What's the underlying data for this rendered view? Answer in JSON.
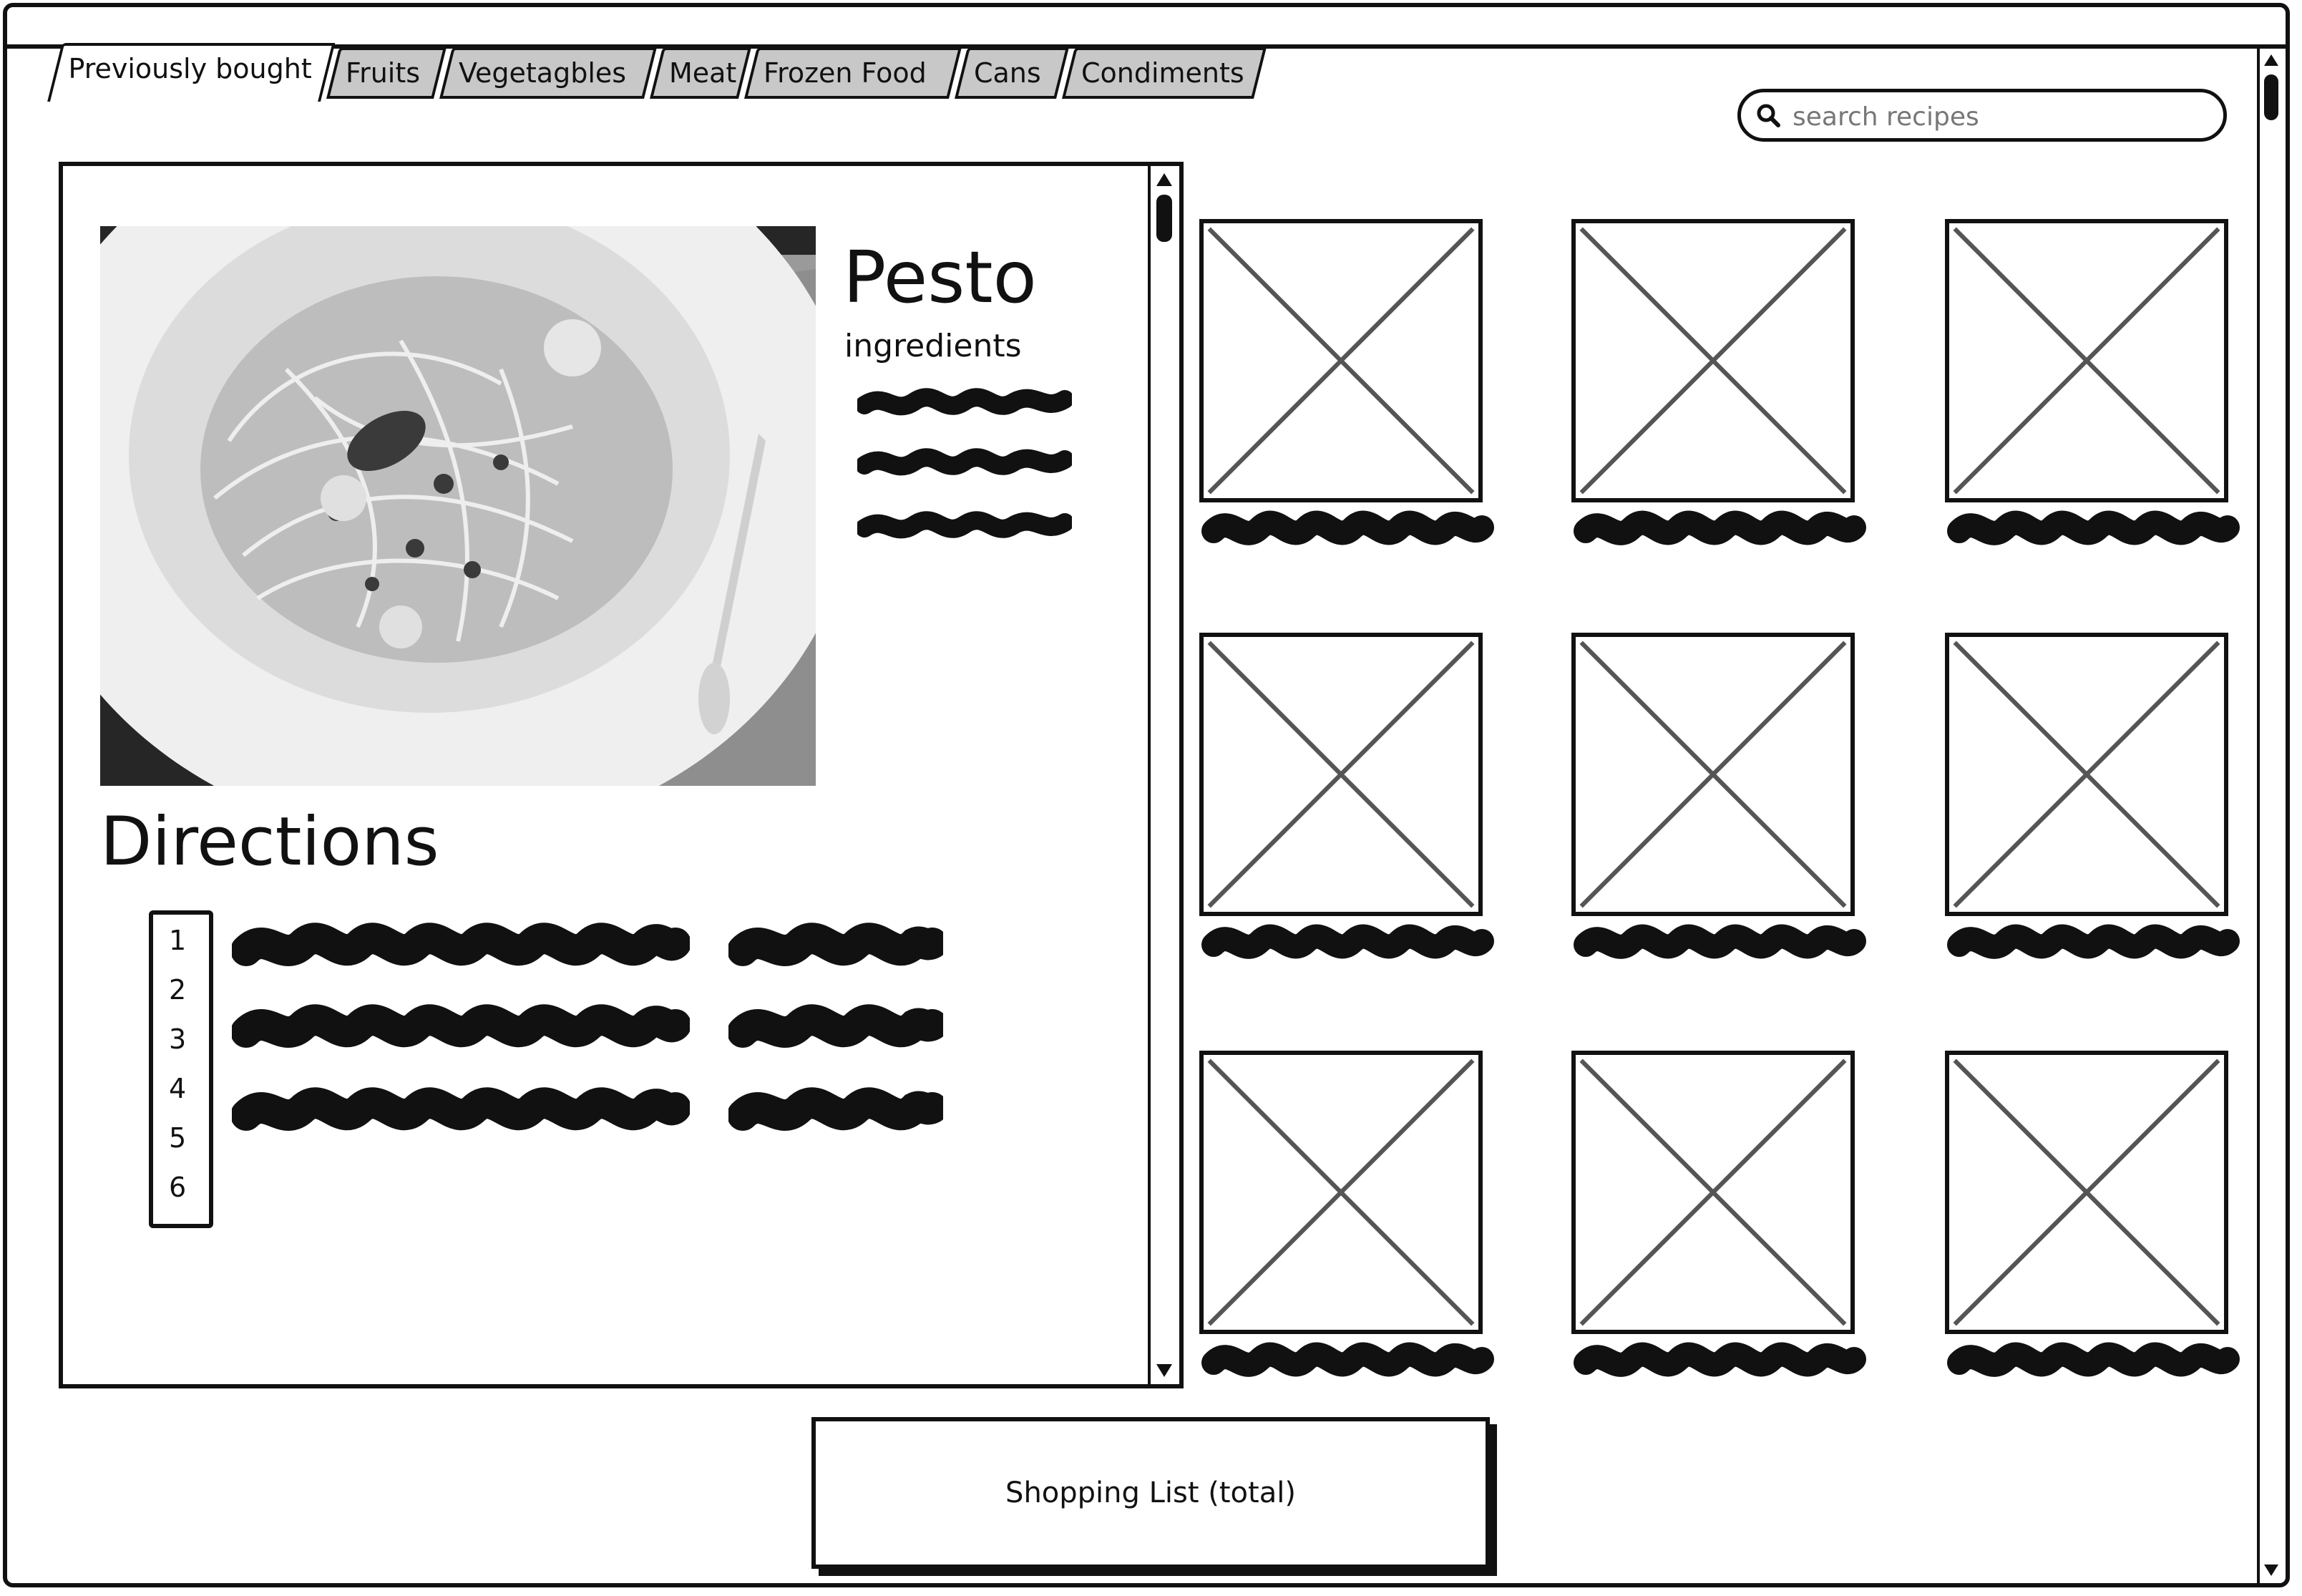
{
  "tabs": [
    {
      "label": "Previously bought",
      "active": true
    },
    {
      "label": "Fruits",
      "active": false
    },
    {
      "label": "Vegetagbles",
      "active": false
    },
    {
      "label": "Meat",
      "active": false
    },
    {
      "label": "Frozen Food",
      "active": false
    },
    {
      "label": "Cans",
      "active": false
    },
    {
      "label": "Condiments",
      "active": false
    }
  ],
  "search": {
    "placeholder": "search recipes",
    "icon": "search-icon"
  },
  "recipe": {
    "title": "Pesto",
    "ingredients_label": "ingredients",
    "directions_title": "Directions",
    "step_numbers": [
      "1",
      "2",
      "3",
      "4",
      "5",
      "6"
    ]
  },
  "grid": {
    "rows": 3,
    "columns": 3,
    "placeholder_icon": "image-placeholder-icon"
  },
  "shopping_list": {
    "label": "Shopping List (total)"
  },
  "colors": {
    "ink": "#111111",
    "tab_inactive": "#c8c8c8",
    "background": "#ffffff"
  }
}
